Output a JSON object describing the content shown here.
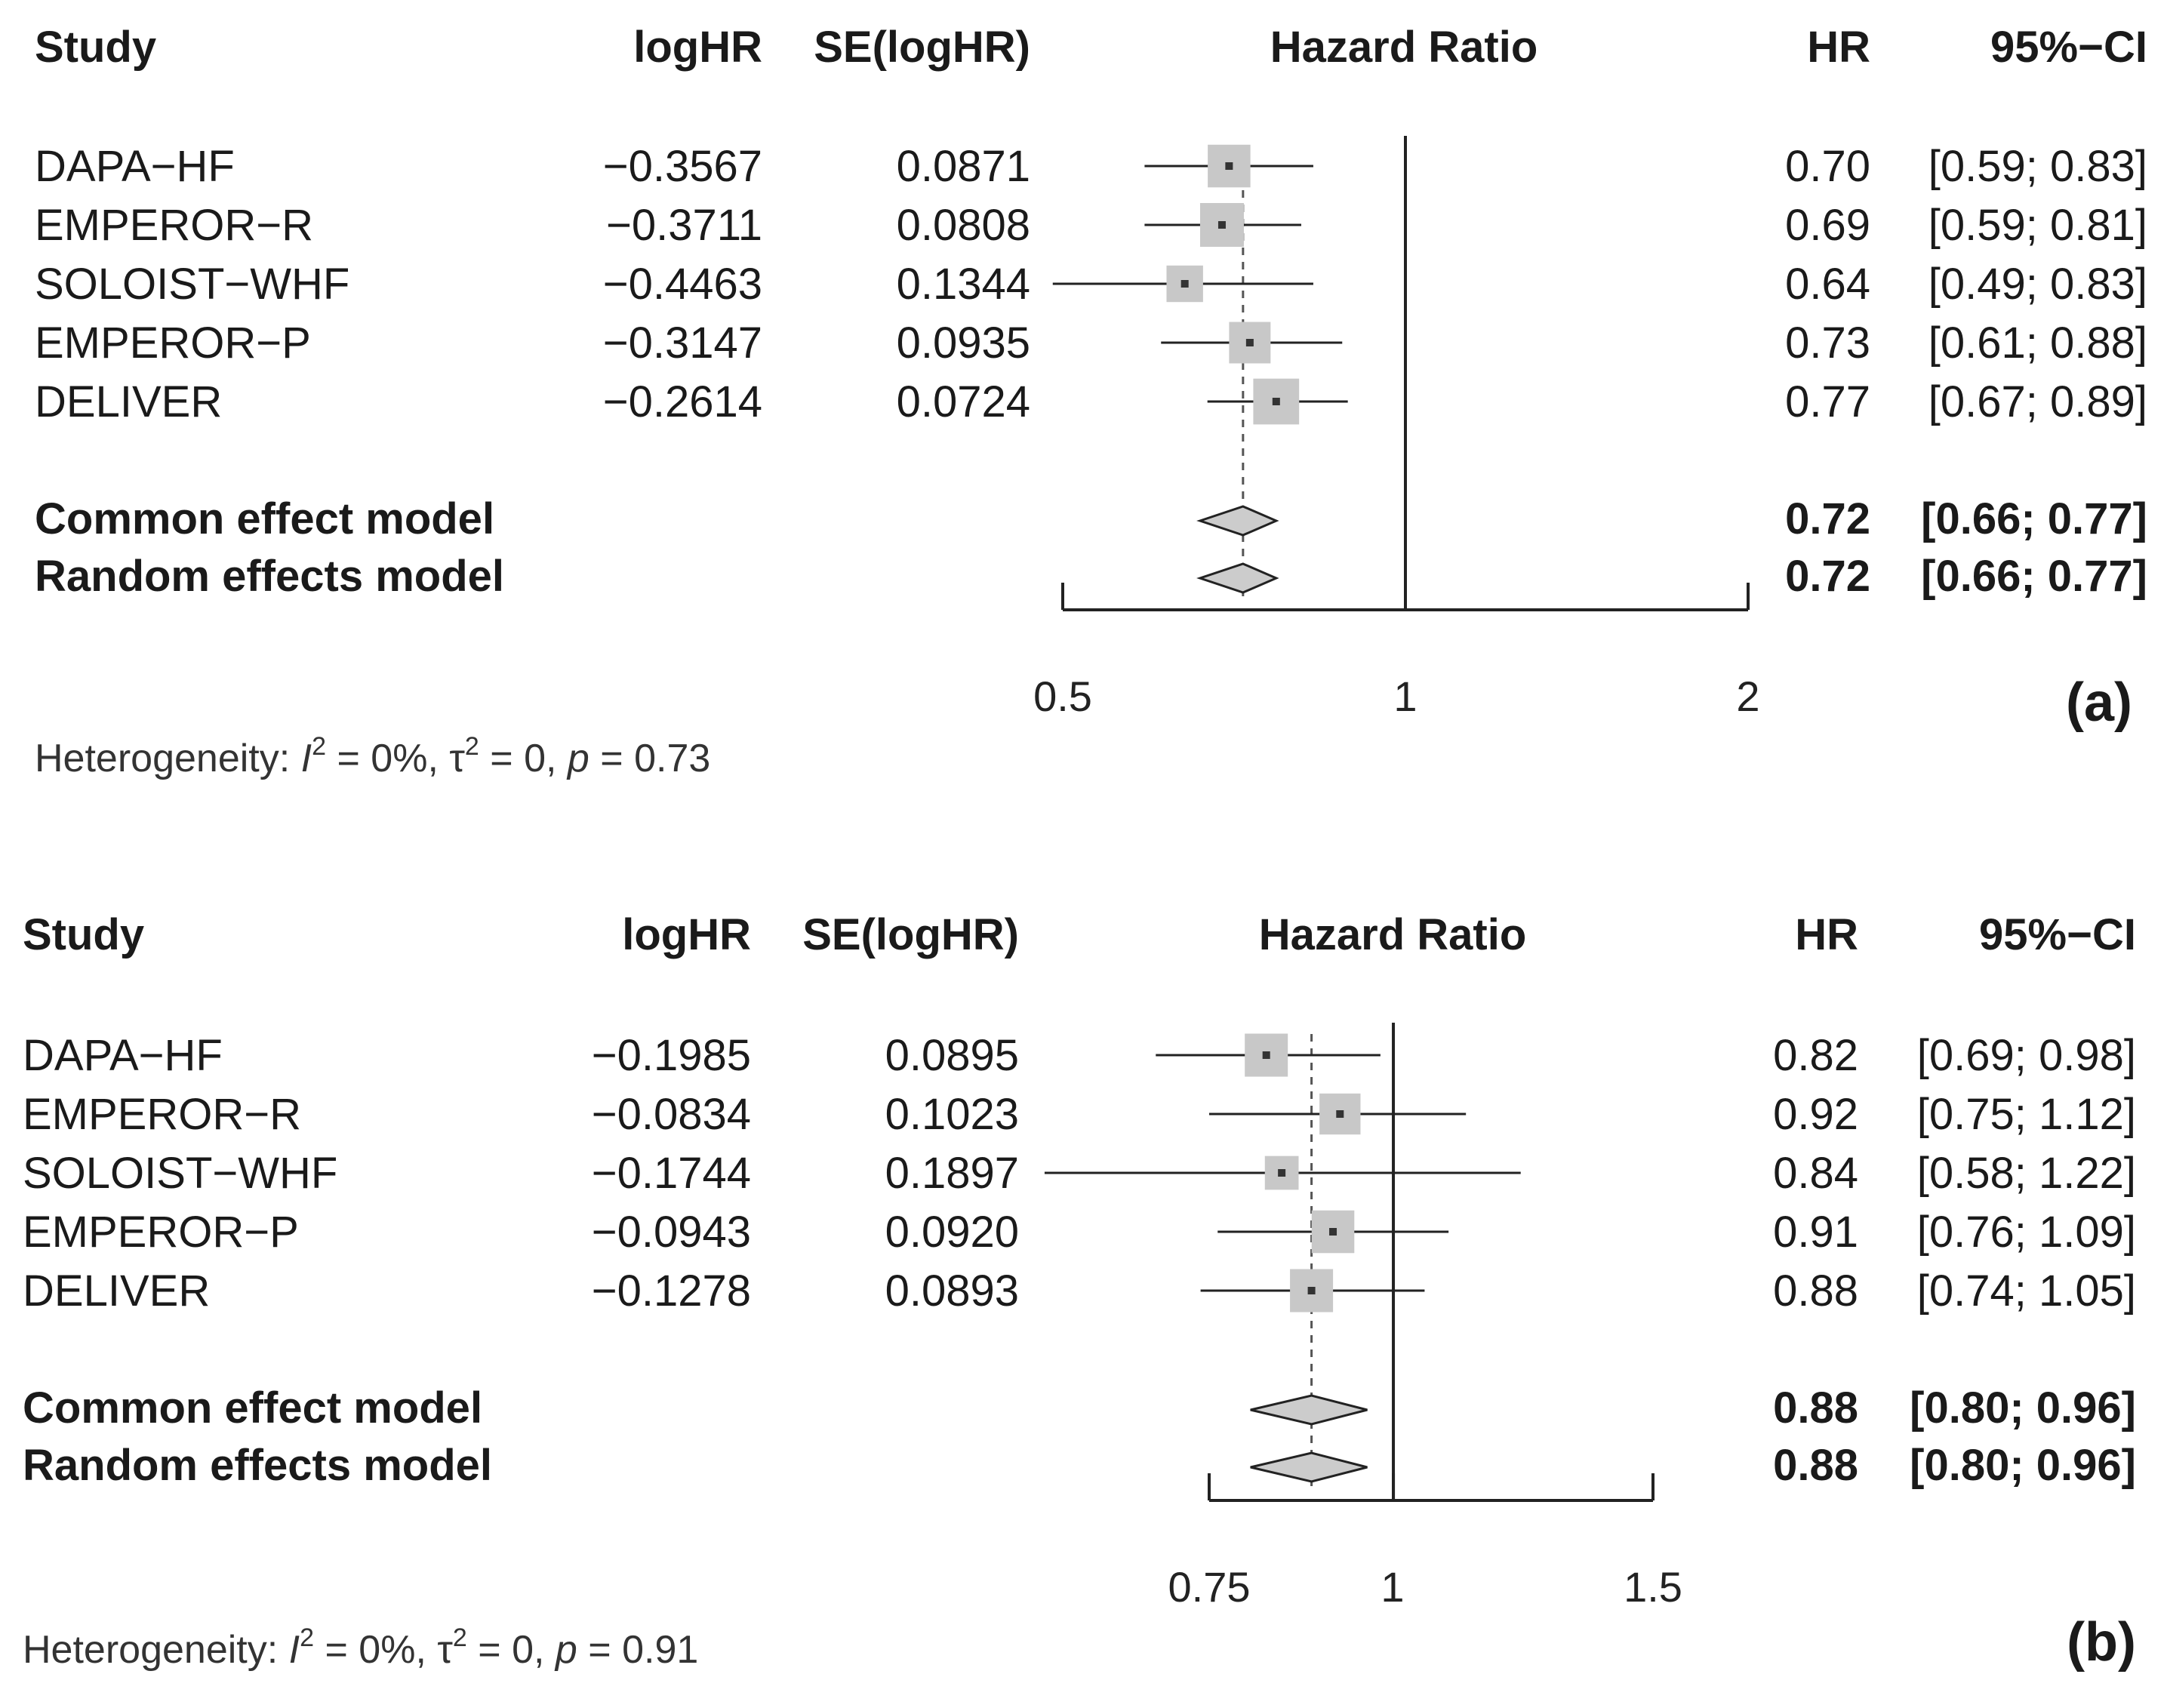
{
  "panels": [
    {
      "label": "(a)",
      "headers": {
        "study": "Study",
        "loghr": "logHR",
        "se": "SE(logHR)",
        "plot": "Hazard Ratio",
        "hr": "HR",
        "ci": "95%−CI"
      },
      "heterogeneity": {
        "prefix": "Heterogeneity: ",
        "i2": "I",
        "i2_sup": "2",
        "i2_value": " = 0%, ",
        "tau": "τ",
        "tau_sup": "2",
        "tau_value": " = 0, ",
        "p": "p",
        "p_value": " = 0.73"
      }
    },
    {
      "label": "(b)",
      "headers": {
        "study": "Study",
        "loghr": "logHR",
        "se": "SE(logHR)",
        "plot": "Hazard Ratio",
        "hr": "HR",
        "ci": "95%−CI"
      },
      "heterogeneity": {
        "prefix": "Heterogeneity: ",
        "i2": "I",
        "i2_sup": "2",
        "i2_value": " = 0%, ",
        "tau": "τ",
        "tau_sup": "2",
        "tau_value": " = 0, ",
        "p": "p",
        "p_value": " = 0.91"
      }
    }
  ],
  "colors": {
    "box": "#c8c8c8",
    "diamond": "#cccccc",
    "line": "#222222"
  },
  "chart_data": [
    {
      "type": "forest",
      "title": "(a)",
      "xlabel": "Hazard Ratio",
      "scale": "log",
      "xlim": [
        0.5,
        2
      ],
      "ticks": [
        0.5,
        1,
        2
      ],
      "tick_labels": [
        "0.5",
        "1",
        "2"
      ],
      "reference_line": 1,
      "pooled_line": 0.72,
      "studies": [
        {
          "name": "DAPA−HF",
          "loghr": "−0.3567",
          "se": "0.0871",
          "hr": 0.7,
          "lo": 0.59,
          "hi": 0.83,
          "hr_text": "0.70",
          "ci_text": "[0.59; 0.83]",
          "weight": 0.22
        },
        {
          "name": "EMPEROR−R",
          "loghr": "−0.3711",
          "se": "0.0808",
          "hr": 0.69,
          "lo": 0.59,
          "hi": 0.81,
          "hr_text": "0.69",
          "ci_text": "[0.59; 0.81]",
          "weight": 0.25
        },
        {
          "name": "SOLOIST−WHF",
          "loghr": "−0.4463",
          "se": "0.1344",
          "hr": 0.64,
          "lo": 0.49,
          "hi": 0.83,
          "hr_text": "0.64",
          "ci_text": "[0.49; 0.83]",
          "weight": 0.09
        },
        {
          "name": "EMPEROR−P",
          "loghr": "−0.3147",
          "se": "0.0935",
          "hr": 0.73,
          "lo": 0.61,
          "hi": 0.88,
          "hr_text": "0.73",
          "ci_text": "[0.61; 0.88]",
          "weight": 0.19
        },
        {
          "name": "DELIVER",
          "loghr": "−0.2614",
          "se": "0.0724",
          "hr": 0.77,
          "lo": 0.67,
          "hi": 0.89,
          "hr_text": "0.77",
          "ci_text": "[0.67; 0.89]",
          "weight": 0.31
        }
      ],
      "models": [
        {
          "name": "Common effect model",
          "hr": 0.72,
          "lo": 0.66,
          "hi": 0.77,
          "hr_text": "0.72",
          "ci_text": "[0.66; 0.77]"
        },
        {
          "name": "Random effects model",
          "hr": 0.72,
          "lo": 0.66,
          "hi": 0.77,
          "hr_text": "0.72",
          "ci_text": "[0.66; 0.77]"
        }
      ]
    },
    {
      "type": "forest",
      "title": "(b)",
      "xlabel": "Hazard Ratio",
      "scale": "log",
      "xlim": [
        0.75,
        1.5
      ],
      "ticks": [
        0.75,
        1,
        1.5
      ],
      "tick_labels": [
        "0.75",
        "1",
        "1.5"
      ],
      "reference_line": 1,
      "pooled_line": 0.88,
      "studies": [
        {
          "name": "DAPA−HF",
          "loghr": "−0.1985",
          "se": "0.0895",
          "hr": 0.82,
          "lo": 0.69,
          "hi": 0.98,
          "hr_text": "0.82",
          "ci_text": "[0.69; 0.98]",
          "weight": 0.23
        },
        {
          "name": "EMPEROR−R",
          "loghr": "−0.0834",
          "se": "0.1023",
          "hr": 0.92,
          "lo": 0.75,
          "hi": 1.12,
          "hr_text": "0.92",
          "ci_text": "[0.75; 1.12]",
          "weight": 0.18
        },
        {
          "name": "SOLOIST−WHF",
          "loghr": "−0.1744",
          "se": "0.1897",
          "hr": 0.84,
          "lo": 0.58,
          "hi": 1.22,
          "hr_text": "0.84",
          "ci_text": "[0.58; 1.22]",
          "weight": 0.05
        },
        {
          "name": "EMPEROR−P",
          "loghr": "−0.0943",
          "se": "0.0920",
          "hr": 0.91,
          "lo": 0.76,
          "hi": 1.09,
          "hr_text": "0.91",
          "ci_text": "[0.76; 1.09]",
          "weight": 0.22
        },
        {
          "name": "DELIVER",
          "loghr": "−0.1278",
          "se": "0.0893",
          "hr": 0.88,
          "lo": 0.74,
          "hi": 1.05,
          "hr_text": "0.88",
          "ci_text": "[0.74; 1.05]",
          "weight": 0.23
        }
      ],
      "models": [
        {
          "name": "Common effect model",
          "hr": 0.88,
          "lo": 0.8,
          "hi": 0.96,
          "hr_text": "0.88",
          "ci_text": "[0.80; 0.96]"
        },
        {
          "name": "Random effects model",
          "hr": 0.88,
          "lo": 0.8,
          "hi": 0.96,
          "hr_text": "0.88",
          "ci_text": "[0.80; 0.96]"
        }
      ]
    }
  ]
}
